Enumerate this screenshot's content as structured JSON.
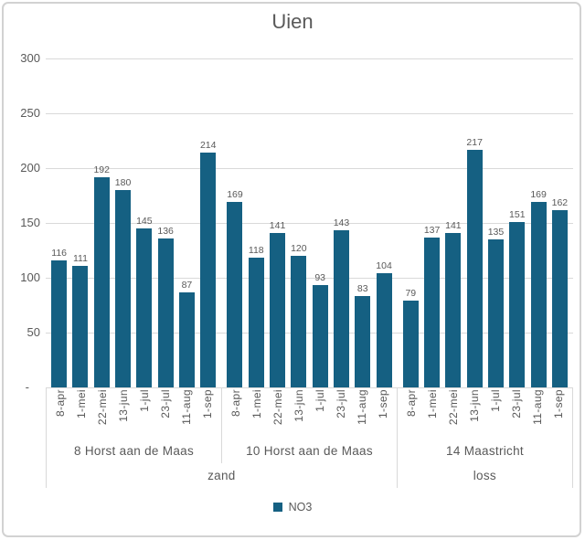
{
  "chart_data": {
    "type": "bar",
    "title": "Uien",
    "series_name": "NO3",
    "categories": [
      "8-apr",
      "1-mei",
      "22-mei",
      "13-jun",
      "1-jul",
      "23-jul",
      "11-aug",
      "1-sep"
    ],
    "groups": [
      {
        "label": "8 Horst aan de Maas",
        "soil": "zand",
        "values": [
          116,
          111,
          192,
          180,
          145,
          136,
          87,
          214
        ]
      },
      {
        "label": "10 Horst aan de Maas",
        "soil": "zand",
        "values": [
          169,
          118,
          141,
          120,
          93,
          143,
          83,
          104
        ]
      },
      {
        "label": "14 Maastricht",
        "soil": "loss",
        "values": [
          79,
          137,
          141,
          217,
          135,
          151,
          169,
          162
        ]
      }
    ],
    "soil_spans": [
      {
        "label": "zand",
        "span": 2
      },
      {
        "label": "loss",
        "span": 1
      }
    ],
    "y_axis": {
      "min": 0,
      "max": 300,
      "tick_interval": 50,
      "tick_labels_top_to_bottom": [
        "300",
        "250",
        "200",
        "150",
        "100",
        "50",
        "-"
      ]
    },
    "grid": true,
    "legend_position": "bottom",
    "legend": {
      "entries": [
        {
          "label": "NO3",
          "color": "#156082"
        }
      ]
    },
    "colors": {
      "bar": "#156082",
      "text": "#595959",
      "grid": "#d9d9d9",
      "frame": "#d2d2d2"
    }
  }
}
